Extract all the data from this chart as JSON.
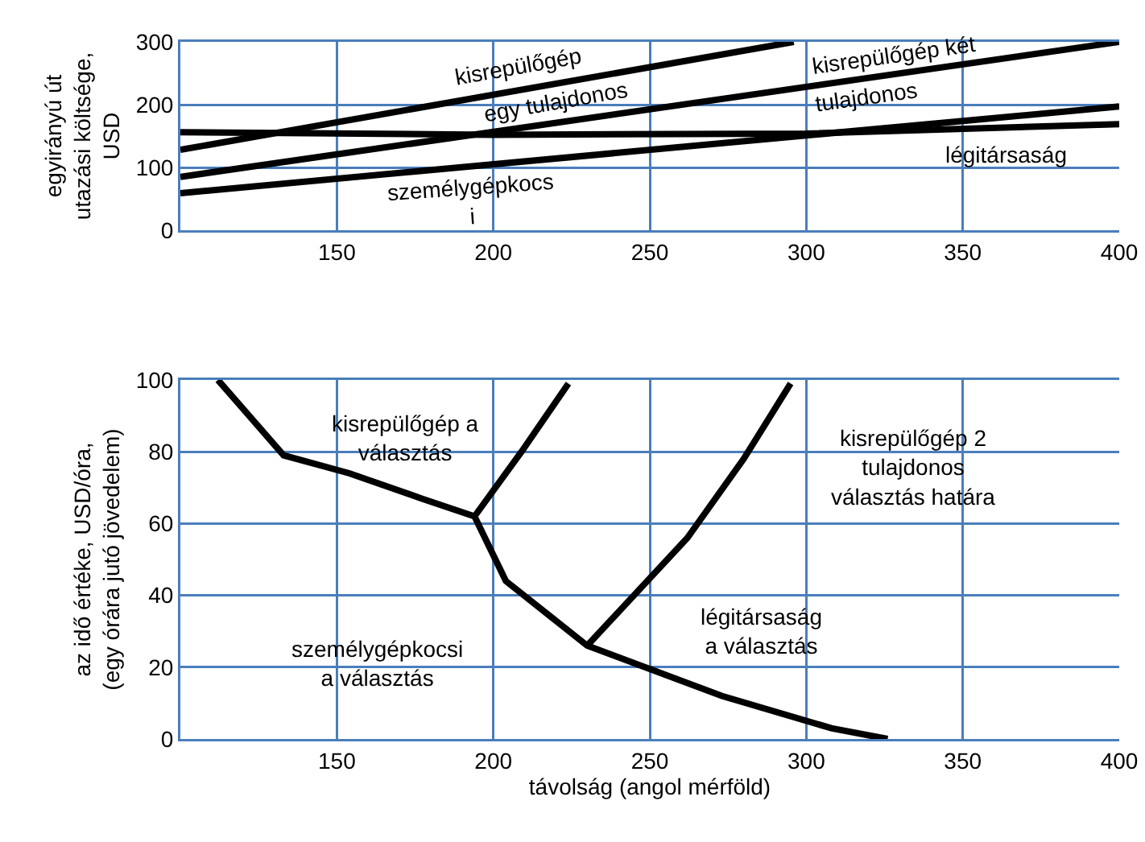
{
  "chart_data": [
    {
      "type": "line",
      "ylabel": "egyirányú út\nutazási költsége,\nUSD",
      "xlim": [
        100,
        400
      ],
      "xticks": [
        150,
        200,
        250,
        300,
        350,
        400
      ],
      "ylim": [
        0,
        300
      ],
      "yticks": [
        0,
        100,
        200,
        300
      ],
      "grid": true,
      "marker": "none",
      "line_style": "solid",
      "series": [
        {
          "color": "#000000",
          "x": [
            100,
            296
          ],
          "values": [
            128,
            300
          ]
        },
        {
          "color": "#000000",
          "x": [
            100,
            400
          ],
          "values": [
            85,
            300
          ]
        },
        {
          "color": "#000000",
          "x": [
            100,
            200,
            300,
            400
          ],
          "values": [
            156,
            152,
            154,
            169
          ]
        },
        {
          "color": "#000000",
          "x": [
            100,
            400
          ],
          "values": [
            59,
            197
          ]
        }
      ],
      "annotations": [
        "kisrepülőgép",
        "egy tulajdonos",
        "kisrepülőgép két",
        "tulajdonos",
        "légitársaság",
        "személygépkocs\ni"
      ]
    },
    {
      "type": "line",
      "ylabel": "az idő értéke, USD/óra,\n(egy órára jutó jövedelem)",
      "xlabel": "távolság (angol mérföld)",
      "xlim": [
        100,
        400
      ],
      "xticks": [
        150,
        200,
        250,
        300,
        350,
        400
      ],
      "ylim": [
        0,
        100
      ],
      "yticks": [
        0,
        20,
        40,
        60,
        80,
        100
      ],
      "grid": true,
      "marker": "none",
      "line_style": "solid",
      "series": [
        {
          "color": "#000000",
          "x": [
            112,
            133,
            154,
            177,
            194,
            204,
            230,
            273,
            308,
            326
          ],
          "values": [
            100,
            79,
            74,
            67,
            62,
            44,
            26,
            12,
            3,
            0
          ]
        },
        {
          "color": "#000000",
          "x": [
            194,
            209,
            224
          ],
          "values": [
            62,
            80,
            99
          ]
        },
        {
          "color": "#000000",
          "x": [
            230,
            262,
            280,
            295
          ],
          "values": [
            26,
            56,
            78,
            99
          ]
        }
      ],
      "annotations": [
        "kisrepülőgép a\nválasztás",
        "kisrepülőgép 2\ntulajdonos\nválasztás határa",
        "légitársaság\na választás",
        "személygépkocsi\na választás"
      ]
    }
  ]
}
